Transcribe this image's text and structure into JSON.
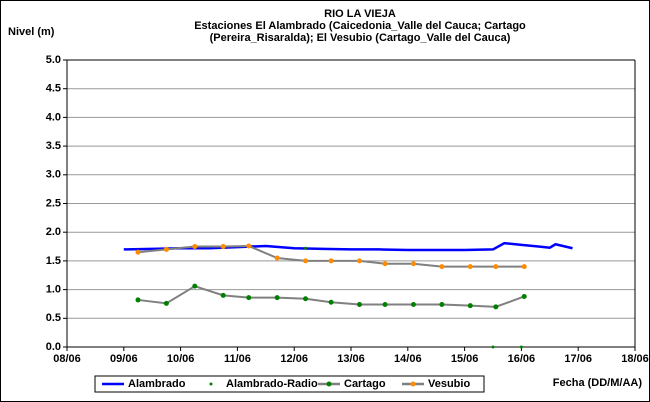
{
  "chart_data": {
    "type": "line",
    "title": [
      "RIO LA VIEJA",
      "Estaciones El Alambrado (Caicedonia_Valle del Cauca; Cartago",
      "(Pereira_Risaralda);  El Vesubio (Cartago_Valle del Cauca)"
    ],
    "y_label": "Nivel (m)",
    "x_label": "Fecha (DD/M/AA)",
    "xlim": [
      8,
      18
    ],
    "xticks": [
      {
        "value": 8,
        "label": "08/06"
      },
      {
        "value": 9,
        "label": "09/06"
      },
      {
        "value": 10,
        "label": "10/06"
      },
      {
        "value": 11,
        "label": "11/06"
      },
      {
        "value": 12,
        "label": "12/06"
      },
      {
        "value": 13,
        "label": "13/06"
      },
      {
        "value": 14,
        "label": "14/06"
      },
      {
        "value": 15,
        "label": "15/06"
      },
      {
        "value": 16,
        "label": "16/06"
      },
      {
        "value": 17,
        "label": "17/06"
      },
      {
        "value": 18,
        "label": "18/06"
      }
    ],
    "ylim": [
      0,
      5
    ],
    "yticks": [
      {
        "value": 0,
        "label": "0.0"
      },
      {
        "value": 0.5,
        "label": "0.5"
      },
      {
        "value": 1,
        "label": "1.0"
      },
      {
        "value": 1.5,
        "label": "1.5"
      },
      {
        "value": 2,
        "label": "2.0"
      },
      {
        "value": 2.5,
        "label": "2.5"
      },
      {
        "value": 3,
        "label": "3.0"
      },
      {
        "value": 3.5,
        "label": "3.5"
      },
      {
        "value": 4,
        "label": "4.0"
      },
      {
        "value": 4.5,
        "label": "4.5"
      },
      {
        "value": 5,
        "label": "5.0"
      }
    ],
    "grid": true,
    "legend": "bottom",
    "series": [
      {
        "name": "Alambrado",
        "color": "#0000ff",
        "style": "line",
        "x": [
          9.0,
          9.5,
          10.0,
          10.5,
          11.0,
          11.5,
          12.0,
          12.5,
          13.0,
          13.5,
          14.0,
          14.5,
          15.0,
          15.5,
          15.7,
          16.0,
          16.3,
          16.5,
          16.6,
          16.9
        ],
        "values": [
          1.7,
          1.71,
          1.72,
          1.72,
          1.74,
          1.76,
          1.72,
          1.71,
          1.7,
          1.7,
          1.69,
          1.69,
          1.69,
          1.7,
          1.81,
          1.78,
          1.75,
          1.73,
          1.79,
          1.72
        ]
      },
      {
        "name": "Alambrado-Radio",
        "color": "#008000",
        "style": "points",
        "x": [
          12.2,
          15.5,
          16.0
        ],
        "values": [
          1.72,
          0,
          0
        ]
      },
      {
        "name": "Cartago",
        "color": "#808080",
        "marker_color": "#008000",
        "style": "line-markers",
        "x": [
          9.25,
          9.75,
          10.25,
          10.75,
          11.2,
          11.7,
          12.2,
          12.65,
          13.15,
          13.6,
          14.1,
          14.6,
          15.1,
          15.55,
          16.05
        ],
        "values": [
          0.82,
          0.76,
          1.06,
          0.9,
          0.86,
          0.86,
          0.84,
          0.78,
          0.74,
          0.74,
          0.74,
          0.74,
          0.72,
          0.7,
          0.88
        ]
      },
      {
        "name": "Vesubio",
        "color": "#808080",
        "marker_color": "#ff8c00",
        "style": "line-markers",
        "x": [
          9.25,
          9.75,
          10.25,
          10.75,
          11.2,
          11.7,
          12.2,
          12.65,
          13.15,
          13.6,
          14.1,
          14.6,
          15.1,
          15.55,
          16.05
        ],
        "values": [
          1.65,
          1.7,
          1.75,
          1.75,
          1.76,
          1.55,
          1.5,
          1.5,
          1.5,
          1.45,
          1.45,
          1.4,
          1.4,
          1.4,
          1.4
        ]
      }
    ]
  }
}
